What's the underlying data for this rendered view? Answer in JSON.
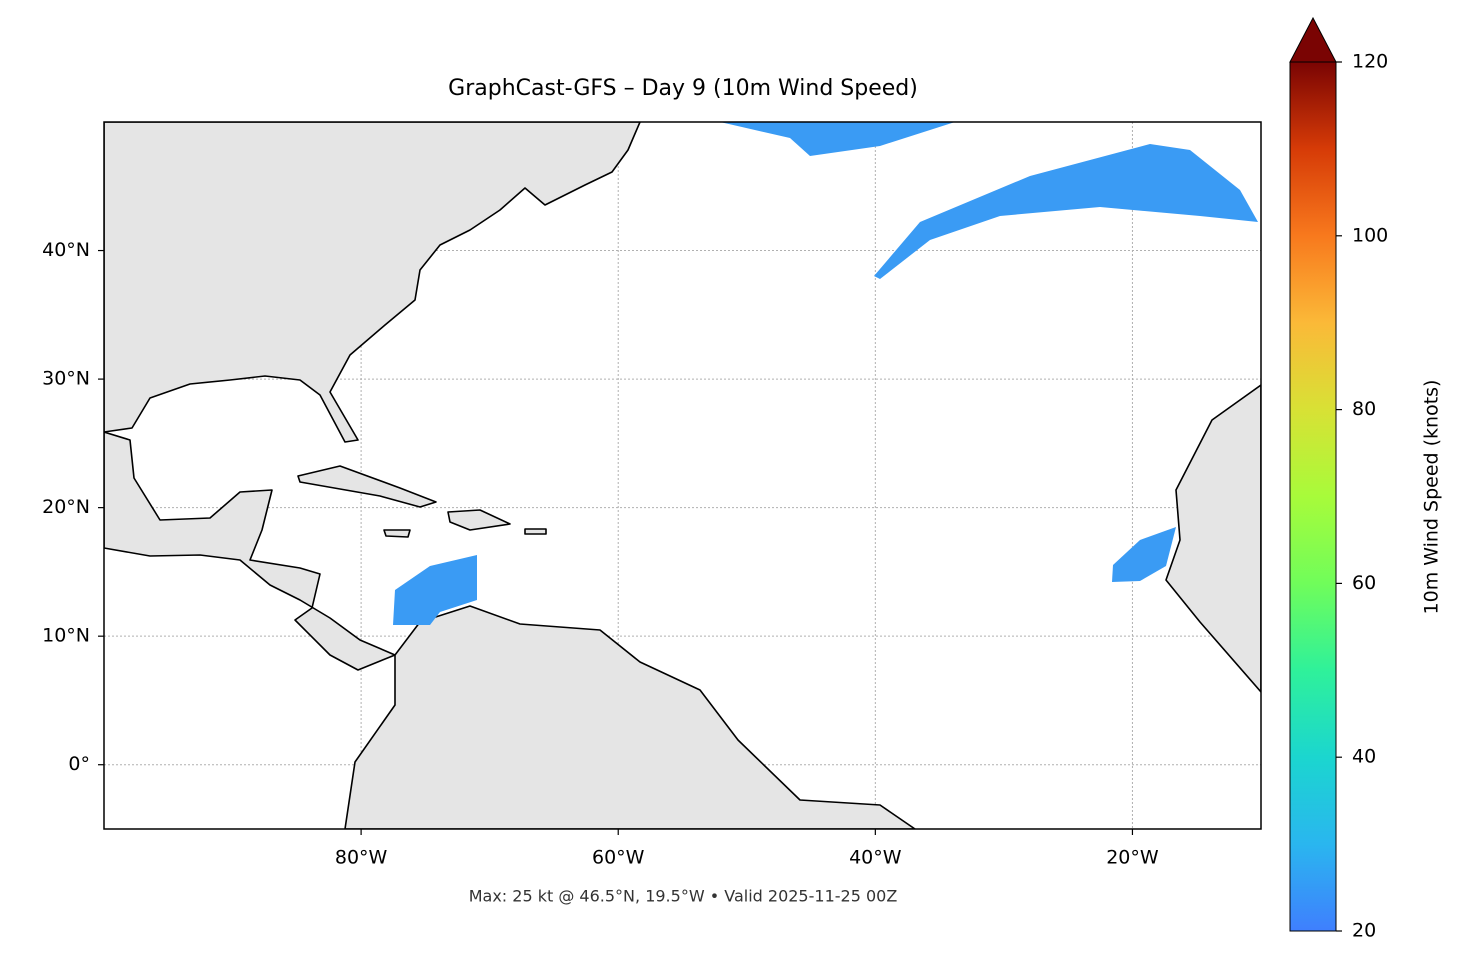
{
  "map": {
    "title": "GraphCast-GFS – Day 9 (10m Wind Speed)",
    "xlim": [
      -100,
      -10
    ],
    "ylim": [
      -5,
      50
    ],
    "xticks": [
      {
        "value": -80,
        "label": "80°W"
      },
      {
        "value": -60,
        "label": "60°W"
      },
      {
        "value": -40,
        "label": "40°W"
      },
      {
        "value": -20,
        "label": "20°W"
      }
    ],
    "yticks": [
      {
        "value": 0,
        "label": "0°"
      },
      {
        "value": 10,
        "label": "10°N"
      },
      {
        "value": 20,
        "label": "20°N"
      },
      {
        "value": 30,
        "label": "30°N"
      },
      {
        "value": 40,
        "label": "40°N"
      }
    ],
    "grid": true,
    "colorbar": {
      "label": "10m Wind Speed (knots)",
      "lim": [
        20,
        120
      ],
      "ticks": [
        20,
        40,
        60,
        80,
        100,
        120
      ]
    },
    "footer": "Max: 25 kt @ 46.5°N, 19.5°W • Valid 2025-11-25 00Z"
  }
}
